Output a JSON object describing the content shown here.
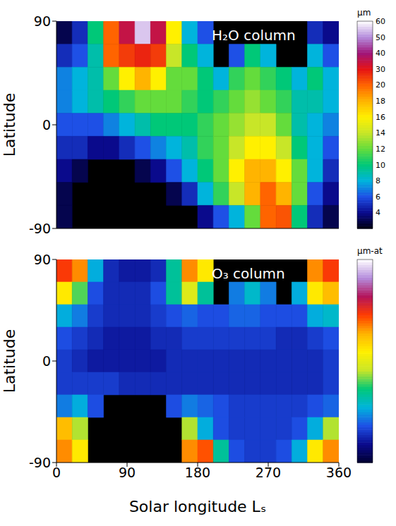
{
  "chart_data": [
    {
      "type": "heatmap",
      "title": "H₂O column",
      "ylabel": "Latitude",
      "x_bins": [
        0,
        20,
        40,
        60,
        80,
        100,
        120,
        140,
        160,
        180,
        200,
        220,
        240,
        260,
        280,
        300,
        320,
        340,
        360
      ],
      "y_bins": [
        90,
        70,
        50,
        30,
        10,
        -10,
        -30,
        -50,
        -70,
        -90
      ],
      "cells": [
        [
          3,
          5,
          10,
          20,
          35,
          55,
          35,
          16,
          8,
          6,
          null,
          null,
          null,
          null,
          null,
          null,
          5,
          4
        ],
        [
          5,
          6,
          9,
          20,
          25,
          28,
          25,
          14,
          10,
          8,
          null,
          6,
          10,
          8,
          null,
          null,
          8,
          6
        ],
        [
          7,
          8,
          9,
          12,
          16,
          18,
          16,
          12,
          12,
          10,
          8,
          11,
          12,
          11,
          10,
          8,
          10,
          8
        ],
        [
          7,
          8,
          9,
          10,
          11,
          12,
          12,
          12,
          11,
          10,
          11,
          12,
          13,
          12,
          11,
          9,
          9,
          8
        ],
        [
          6,
          6,
          6,
          7,
          8,
          9,
          10,
          10,
          10,
          11,
          12,
          13,
          14,
          14,
          12,
          9,
          8,
          7
        ],
        [
          5,
          5,
          4,
          4,
          5,
          6,
          7,
          8,
          9,
          11,
          12,
          14,
          16,
          16,
          14,
          10,
          8,
          6
        ],
        [
          4,
          3,
          null,
          null,
          null,
          3,
          4,
          6,
          8,
          10,
          12,
          16,
          18,
          18,
          16,
          12,
          8,
          5
        ],
        [
          3,
          null,
          null,
          null,
          null,
          null,
          null,
          3,
          5,
          8,
          11,
          14,
          18,
          20,
          18,
          12,
          6,
          4
        ],
        [
          3,
          null,
          null,
          null,
          null,
          null,
          null,
          null,
          null,
          4,
          6,
          8,
          12,
          20,
          22,
          10,
          5,
          3
        ]
      ],
      "xlim": [
        0,
        360
      ],
      "ylim": [
        -90,
        90
      ],
      "xticks": [
        0,
        90,
        180,
        270,
        360
      ],
      "yticks": [
        -90,
        0,
        90
      ],
      "tick_labels": "y",
      "colorbar": {
        "label": "μm",
        "range": [
          2,
          60
        ],
        "ticks": [
          4,
          6,
          8,
          10,
          12,
          14,
          16,
          18,
          20,
          30,
          40,
          50,
          60
        ]
      }
    },
    {
      "type": "heatmap",
      "title": "O₃ column",
      "xlabel": "Solar longitude Lₛ",
      "ylabel": "Latitude",
      "x_bins": [
        0,
        20,
        40,
        60,
        80,
        100,
        120,
        140,
        160,
        180,
        200,
        220,
        240,
        260,
        280,
        300,
        320,
        340,
        360
      ],
      "y_bins": [
        90,
        70,
        50,
        30,
        10,
        -10,
        -30,
        -50,
        -70,
        -90
      ],
      "cells": [
        [
          3.3,
          3.0,
          1.2,
          0.6,
          0.5,
          0.5,
          0.6,
          1.5,
          3.0,
          2.5,
          null,
          null,
          null,
          null,
          null,
          null,
          3.0,
          3.3
        ],
        [
          2.5,
          1.8,
          0.8,
          0.6,
          0.6,
          0.6,
          0.8,
          1.5,
          2.2,
          1.5,
          null,
          1.0,
          1.3,
          1.0,
          null,
          1.2,
          2.5,
          2.8
        ],
        [
          1.2,
          1.0,
          0.7,
          0.6,
          0.6,
          0.6,
          0.7,
          0.8,
          0.9,
          0.8,
          0.8,
          0.9,
          0.9,
          0.8,
          0.8,
          0.8,
          1.2,
          1.3
        ],
        [
          0.8,
          0.7,
          0.6,
          0.5,
          0.5,
          0.5,
          0.6,
          0.6,
          0.7,
          0.7,
          0.7,
          0.7,
          0.7,
          0.7,
          0.6,
          0.6,
          0.7,
          0.8
        ],
        [
          0.7,
          0.6,
          0.5,
          0.5,
          0.5,
          0.5,
          0.5,
          0.6,
          0.6,
          0.6,
          0.6,
          0.6,
          0.6,
          0.6,
          0.6,
          0.6,
          0.6,
          0.7
        ],
        [
          0.7,
          0.7,
          0.7,
          0.7,
          0.6,
          0.6,
          0.6,
          0.6,
          0.6,
          0.6,
          0.6,
          0.6,
          0.6,
          0.6,
          0.6,
          0.6,
          0.6,
          0.7
        ],
        [
          1.0,
          1.2,
          0.8,
          null,
          null,
          null,
          null,
          0.8,
          1.0,
          0.9,
          0.8,
          0.7,
          0.7,
          0.7,
          0.7,
          0.7,
          0.8,
          0.9
        ],
        [
          2.8,
          2.0,
          null,
          null,
          null,
          null,
          null,
          null,
          2.0,
          1.2,
          0.8,
          0.7,
          0.7,
          0.7,
          0.7,
          0.8,
          1.2,
          2.0
        ],
        [
          3.0,
          2.5,
          null,
          null,
          null,
          null,
          null,
          null,
          3.0,
          3.2,
          1.5,
          0.8,
          0.7,
          0.7,
          0.8,
          1.2,
          2.5,
          3.0
        ]
      ],
      "xlim": [
        0,
        360
      ],
      "ylim": [
        -90,
        90
      ],
      "xticks": [
        0,
        90,
        180,
        270,
        360
      ],
      "yticks": [
        -90,
        0,
        90
      ],
      "colorbar": {
        "label": "μm-at",
        "range": [
          0,
          4.5
        ]
      }
    }
  ]
}
